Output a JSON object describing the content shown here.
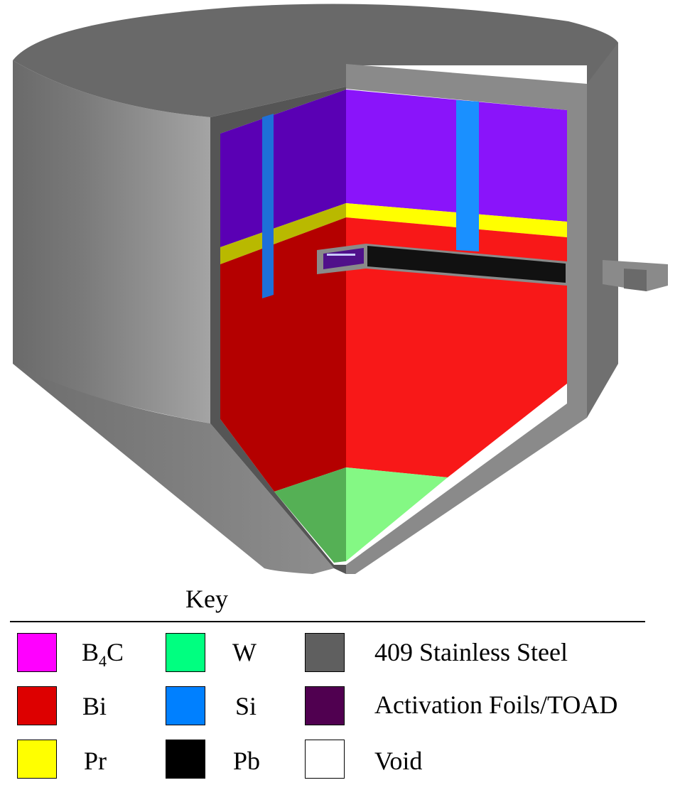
{
  "key": {
    "title": "Key",
    "items": [
      {
        "id": "b4c",
        "label_main": "B",
        "label_sub": "4",
        "label_end": "C",
        "color": "#ff00ff"
      },
      {
        "id": "bi",
        "label": "Bi",
        "color": "#dd0000"
      },
      {
        "id": "pr",
        "label": "Pr",
        "color": "#ffff00"
      },
      {
        "id": "w",
        "label": "W",
        "color": "#00ff80"
      },
      {
        "id": "si",
        "label": "Si",
        "color": "#0080ff"
      },
      {
        "id": "pb",
        "label": "Pb",
        "color": "#000000"
      },
      {
        "id": "ss409",
        "label": "409 Stainless Steel",
        "color": "#5f5f5f"
      },
      {
        "id": "foils",
        "label": "Activation Foils/TOAD",
        "color": "#500050"
      },
      {
        "id": "void",
        "label": "Void",
        "color": "#ffffff"
      }
    ]
  },
  "model_colors": {
    "steel_light": "#8a8a8a",
    "steel_mid": "#6e6e6e",
    "steel_dark": "#555555",
    "purple_left": "#5a00b4",
    "purple_right": "#8a14fa",
    "red_left": "#b40000",
    "red_right": "#f81818",
    "yellow_left": "#b9b900",
    "yellow_right": "#ffff00",
    "green_left": "#55b055",
    "green_right": "#84f884",
    "blue_left": "#1e6fd8",
    "blue_right": "#1a90ff",
    "black": "#111111"
  }
}
